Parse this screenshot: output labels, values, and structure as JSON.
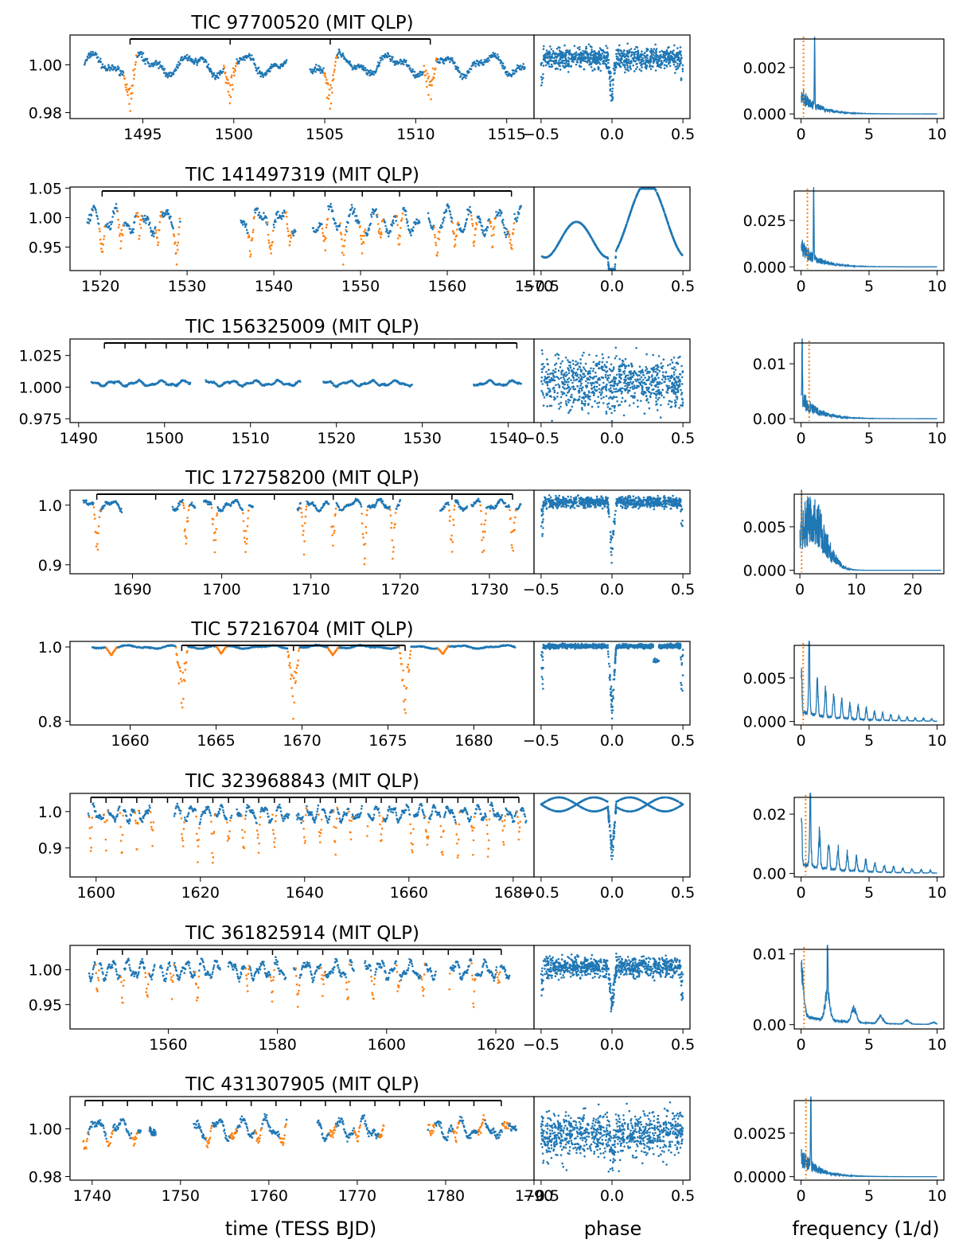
{
  "figure": {
    "xlabel_time": "time (TESS BJD)",
    "xlabel_phase": "phase",
    "xlabel_freq": "frequency (1/d)",
    "colors": {
      "data": "#1f77b4",
      "eclipse": "#ff7f0e",
      "marker": "#000000"
    }
  },
  "chart_data": [
    {
      "type": "scatter",
      "title": "TIC 97700520 (MIT QLP)",
      "time": {
        "xlim": [
          1491,
          1516.5
        ],
        "ylim": [
          0.9775,
          1.0125
        ],
        "xticks": [
          "1495",
          "1500",
          "1505",
          "1510",
          "1515"
        ],
        "yticks": [
          "0.98",
          "1.00"
        ],
        "eclipse_times": [
          1494.3,
          1499.8,
          1505.3,
          1510.8
        ],
        "eclipse_marker_range": [
          1494.3,
          1510.8
        ],
        "eclipse_marker_ticks": [
          1494.3,
          1499.8,
          1505.3,
          1510.8
        ],
        "segments": [
          [
            1491.8,
            1502.9
          ],
          [
            1504.2,
            1516.0
          ]
        ],
        "baseline": 1.0,
        "scatter": 0.004,
        "depth": 0.02
      },
      "phase": {
        "xlim": [
          -0.55,
          0.55
        ],
        "xticks": [
          "-0.5",
          "0.0",
          "0.5"
        ],
        "depth": 0.02,
        "scatter": 0.004,
        "curve": "flat"
      },
      "periodogram": {
        "xlim": [
          -0.5,
          10.5
        ],
        "ylim": [
          -0.0002,
          0.0034
        ],
        "xticks": [
          "0",
          "5",
          "10"
        ],
        "yticks": [
          "0.000",
          "0.002"
        ],
        "peak_freq": 1.0,
        "peak_power": 0.0032,
        "period_line": 0.18
      }
    },
    {
      "type": "scatter",
      "title": "TIC 141497319 (MIT QLP)",
      "time": {
        "xlim": [
          1516.5,
          1570
        ],
        "ylim": [
          0.91,
          1.052
        ],
        "xticks": [
          "1520",
          "1530",
          "1540",
          "1550",
          "1560",
          "1570"
        ],
        "yticks": [
          "0.95",
          "1.00",
          "1.05"
        ],
        "eclipse_times": [
          1520.2,
          1522.3,
          1524.5,
          1526.7,
          1528.8,
          1537.4,
          1539.6,
          1541.7,
          1545.9,
          1548.0,
          1550.2,
          1552.3,
          1554.5,
          1558.8,
          1560.9,
          1563.1,
          1565.2,
          1567.4
        ],
        "eclipse_marker_range": [
          1520.2,
          1567.4
        ],
        "eclipse_marker_ticks": [
          1520.2,
          1523.9,
          1528.8,
          1535.5,
          1539.6,
          1542.3,
          1545.9,
          1550.2,
          1554.5,
          1558.8,
          1563.1,
          1567.4
        ],
        "segments": [
          [
            1518.5,
            1529.2
          ],
          [
            1536.2,
            1542.5
          ],
          [
            1544.5,
            1556.8
          ],
          [
            1557.8,
            1568.5
          ]
        ],
        "baseline": 0.995,
        "scatter": 0.02,
        "depth": 0.06
      },
      "phase": {
        "xlim": [
          -0.55,
          0.55
        ],
        "xticks": [
          "-0.5",
          "0.0",
          "0.5"
        ],
        "depth": 0.06,
        "scatter": 0.006,
        "curve": "sinus"
      },
      "periodogram": {
        "xlim": [
          -0.5,
          10.5
        ],
        "ylim": [
          -0.002,
          0.043
        ],
        "xticks": [
          "0",
          "5",
          "10"
        ],
        "yticks": [
          "0.000",
          "0.025"
        ],
        "peak_freq": 0.93,
        "peak_power": 0.041,
        "period_line": 0.47
      }
    },
    {
      "type": "scatter",
      "title": "TIC 156325009 (MIT QLP)",
      "time": {
        "xlim": [
          1489,
          1543
        ],
        "ylim": [
          0.972,
          1.038
        ],
        "xticks": [
          "1490",
          "1500",
          "1510",
          "1520",
          "1530",
          "1540"
        ],
        "yticks": [
          "0.975",
          "1.000",
          "1.025"
        ],
        "eclipse_times": [],
        "eclipse_marker_range": [
          1493,
          1541
        ],
        "eclipse_marker_ticks": [
          1493,
          1495.4,
          1497.8,
          1500.2,
          1502.6,
          1505,
          1507.4,
          1509.8,
          1512.2,
          1514.6,
          1517,
          1519.4,
          1521.8,
          1524.2,
          1526.6,
          1529,
          1531.4,
          1533.8,
          1536.2,
          1538.6,
          1541
        ],
        "segments": [
          [
            1491.5,
            1503.0
          ],
          [
            1504.8,
            1515.8
          ],
          [
            1518.5,
            1528.8
          ],
          [
            1536.0,
            1541.5
          ]
        ],
        "baseline": 1.003,
        "scatter": 0.002,
        "depth": 0.004
      },
      "phase": {
        "xlim": [
          -0.55,
          0.55
        ],
        "xticks": [
          "-0.5",
          "0.0",
          "0.5"
        ],
        "depth": 0.01,
        "scatter": 0.012,
        "curve": "band"
      },
      "periodogram": {
        "xlim": [
          -0.5,
          10.5
        ],
        "ylim": [
          -0.0007,
          0.0145
        ],
        "xticks": [
          "0",
          "5",
          "10"
        ],
        "yticks": [
          "0.00",
          "0.01"
        ],
        "peak_freq": 0.08,
        "peak_power": 0.014,
        "period_line": 0.6
      }
    },
    {
      "type": "scatter",
      "title": "TIC 172758200 (MIT QLP)",
      "time": {
        "xlim": [
          1683,
          1735
        ],
        "ylim": [
          0.885,
          1.025
        ],
        "xticks": [
          "1690",
          "1700",
          "1710",
          "1720",
          "1730"
        ],
        "yticks": [
          "0.9",
          "1.0"
        ],
        "eclipse_times": [
          1686.0,
          1696.0,
          1699.2,
          1702.7,
          1709.2,
          1712.5,
          1716.0,
          1719.2,
          1725.8,
          1729.3,
          1732.6
        ],
        "eclipse_marker_range": [
          1686.0,
          1732.6
        ],
        "eclipse_marker_ticks": [
          1686.0,
          1692.6,
          1699.2,
          1705.9,
          1712.5,
          1719.2,
          1725.8,
          1732.6
        ],
        "segments": [
          [
            1684.5,
            1688.8
          ],
          [
            1694.5,
            1697.0
          ],
          [
            1698.0,
            1703.5
          ],
          [
            1708.5,
            1712.0
          ],
          [
            1712.3,
            1720.0
          ],
          [
            1724.5,
            1727.5
          ],
          [
            1728.0,
            1733.5
          ]
        ],
        "baseline": 1.0,
        "scatter": 0.008,
        "depth": 0.1
      },
      "phase": {
        "xlim": [
          -0.55,
          0.55
        ],
        "xticks": [
          "-0.5",
          "0.0",
          "0.5"
        ],
        "depth": 0.11,
        "scatter": 0.008,
        "curve": "flat"
      },
      "periodogram": {
        "xlim": [
          -1,
          25.5
        ],
        "ylim": [
          -0.0004,
          0.0092
        ],
        "xticks": [
          "0",
          "10",
          "20"
        ],
        "yticks": [
          "0.000",
          "0.005"
        ],
        "peak_freq": 0.3,
        "peak_power": 0.0088,
        "period_line": 0.3,
        "shape": "hump"
      }
    },
    {
      "type": "scatter",
      "title": "TIC 57216704 (MIT QLP)",
      "time": {
        "xlim": [
          1656.5,
          1683.5
        ],
        "ylim": [
          0.79,
          1.015
        ],
        "xticks": [
          "1660",
          "1665",
          "1670",
          "1675",
          "1680"
        ],
        "yticks": [
          "0.8",
          "1.0"
        ],
        "eclipse_times": [
          1663.0,
          1669.5,
          1676.0
        ],
        "eclipse_marker_range": [
          1663.0,
          1676.0
        ],
        "eclipse_marker_ticks": [
          1663.0,
          1669.5,
          1676.0
        ],
        "segments": [
          [
            1657.8,
            1682.4
          ]
        ],
        "baseline": 1.0,
        "scatter": 0.004,
        "depth": 0.2,
        "secondary": [
          1658.9,
          1665.3,
          1671.8,
          1678.2
        ]
      },
      "phase": {
        "xlim": [
          -0.55,
          0.55
        ],
        "xticks": [
          "-0.5",
          "0.0",
          "0.5"
        ],
        "depth": 0.2,
        "scatter": 0.005,
        "curve": "flat",
        "secondary": 0.31
      },
      "periodogram": {
        "xlim": [
          -0.5,
          10.5
        ],
        "ylim": [
          -0.0004,
          0.0092
        ],
        "xticks": [
          "0",
          "5",
          "10"
        ],
        "yticks": [
          "0.000",
          "0.005"
        ],
        "peak_freq": 0.6,
        "peak_power": 0.0088,
        "period_line": 0.16,
        "shape": "comb"
      }
    },
    {
      "type": "scatter",
      "title": "TIC 323968843 (MIT QLP)",
      "time": {
        "xlim": [
          1595,
          1684
        ],
        "ylim": [
          0.82,
          1.05
        ],
        "xticks": [
          "1600",
          "1620",
          "1640",
          "1660",
          "1680"
        ],
        "yticks": [
          "0.9",
          "1.0"
        ],
        "eclipse_times": [
          1599,
          1601.9,
          1604.9,
          1607.8,
          1610.7,
          1616.6,
          1619.5,
          1622.4,
          1625.4,
          1628.3,
          1631.2,
          1634.2,
          1640.0,
          1643.0,
          1645.9,
          1648.8,
          1651.8,
          1654.7,
          1660.6,
          1663.5,
          1666.4,
          1669.4,
          1672.3,
          1675.2,
          1678.2,
          1681.1
        ],
        "eclipse_marker_range": [
          1599,
          1681.1
        ],
        "eclipse_marker_ticks": [
          1599,
          1601.9,
          1604.9,
          1607.8,
          1610.7,
          1613.7,
          1616.6,
          1619.5,
          1622.4,
          1625.4,
          1628.3,
          1631.2,
          1634.2,
          1637.1,
          1640.0,
          1643.0,
          1645.9,
          1648.8,
          1651.8,
          1654.7,
          1657.6,
          1660.6,
          1663.5,
          1666.4,
          1669.4,
          1672.3,
          1675.2,
          1678.2,
          1681.1
        ],
        "segments": [
          [
            1598.5,
            1611.0
          ],
          [
            1615.0,
            1626.0
          ],
          [
            1627.0,
            1637.0
          ],
          [
            1638.5,
            1651.0
          ],
          [
            1652.0,
            1682.5
          ]
        ],
        "baseline": 0.995,
        "scatter": 0.02,
        "depth": 0.15
      },
      "phase": {
        "xlim": [
          -0.55,
          0.55
        ],
        "xticks": [
          "-0.5",
          "0.0",
          "0.5"
        ],
        "depth": 0.15,
        "scatter": 0.01,
        "curve": "braid"
      },
      "periodogram": {
        "xlim": [
          -0.5,
          10.5
        ],
        "ylim": [
          -0.0012,
          0.027
        ],
        "xticks": [
          "0",
          "5",
          "10"
        ],
        "yticks": [
          "0.00",
          "0.02"
        ],
        "peak_freq": 0.68,
        "peak_power": 0.026,
        "period_line": 0.34,
        "shape": "comb"
      }
    },
    {
      "type": "scatter",
      "title": "TIC 361825914 (MIT QLP)",
      "time": {
        "xlim": [
          1542,
          1627
        ],
        "ylim": [
          0.915,
          1.035
        ],
        "xticks": [
          "1560",
          "1580",
          "1600",
          "1620"
        ],
        "yticks": [
          "0.95",
          "1.00"
        ],
        "eclipse_times": [
          1547.0,
          1551.6,
          1556.1,
          1560.7,
          1565.3,
          1569.9,
          1574.5,
          1579.1,
          1583.7,
          1588.3,
          1592.9,
          1597.5,
          1602.1,
          1606.7,
          1611.3,
          1615.9,
          1620.5
        ],
        "eclipse_marker_range": [
          1547.0,
          1621.0
        ],
        "eclipse_marker_ticks": [
          1547.0,
          1551.6,
          1556.1,
          1560.7,
          1565.3,
          1569.9,
          1574.5,
          1579.1,
          1583.7,
          1588.3,
          1592.9,
          1597.5,
          1602.1,
          1606.7,
          1611.3,
          1615.9,
          1621.0
        ],
        "segments": [
          [
            1545.5,
            1557.5
          ],
          [
            1558.5,
            1569.5
          ],
          [
            1571.0,
            1581.5
          ],
          [
            1583.0,
            1594.0
          ],
          [
            1596.0,
            1609.0
          ],
          [
            1611.5,
            1622.5
          ]
        ],
        "baseline": 1.0,
        "scatter": 0.012,
        "depth": 0.06
      },
      "phase": {
        "xlim": [
          -0.55,
          0.55
        ],
        "xticks": [
          "-0.5",
          "0.0",
          "0.5"
        ],
        "depth": 0.07,
        "scatter": 0.012,
        "curve": "flat"
      },
      "periodogram": {
        "xlim": [
          -0.5,
          10.5
        ],
        "ylim": [
          -0.0006,
          0.0112
        ],
        "xticks": [
          "0",
          "5",
          "10"
        ],
        "yticks": [
          "0.00",
          "0.01"
        ],
        "peak_freq": 1.95,
        "peak_power": 0.0105,
        "period_line": 0.22,
        "shape": "comb"
      }
    },
    {
      "type": "scatter",
      "title": "TIC 431307905 (MIT QLP)",
      "time": {
        "xlim": [
          1737.5,
          1790
        ],
        "ylim": [
          0.9785,
          1.0135
        ],
        "xticks": [
          "1740",
          "1750",
          "1760",
          "1770",
          "1780",
          "1790"
        ],
        "yticks": [
          "0.98",
          "1.00"
        ],
        "eclipse_times": [
          1739.2,
          1742.0,
          1744.8,
          1750.4,
          1753.2,
          1756.0,
          1758.8,
          1761.6,
          1767.2,
          1770.0,
          1772.8,
          1778.4,
          1781.2,
          1784.0,
          1786.8
        ],
        "eclipse_marker_range": [
          1739.2,
          1786.3
        ],
        "eclipse_marker_ticks": [
          1739.2,
          1741.2,
          1744.0,
          1746.8,
          1749.6,
          1752.4,
          1755.2,
          1758.0,
          1760.8,
          1763.6,
          1766.4,
          1769.2,
          1772.0,
          1774.8,
          1777.6,
          1780.4,
          1783.2,
          1786.3
        ],
        "segments": [
          [
            1739.0,
            1745.5
          ],
          [
            1746.5,
            1747.2
          ],
          [
            1751.5,
            1762.0
          ],
          [
            1765.5,
            1773.0
          ],
          [
            1778.0,
            1788.0
          ]
        ],
        "baseline": 1.0,
        "scatter": 0.004,
        "depth": 0.006
      },
      "phase": {
        "xlim": [
          -0.55,
          0.55
        ],
        "xticks": [
          "-0.5",
          "0.0",
          "0.5"
        ],
        "depth": 0.008,
        "scatter": 0.005,
        "curve": "band"
      },
      "periodogram": {
        "xlim": [
          -0.5,
          10.5
        ],
        "ylim": [
          -0.0002,
          0.0046
        ],
        "xticks": [
          "0",
          "5",
          "10"
        ],
        "yticks": [
          "0.0000",
          "0.0025"
        ],
        "peak_freq": 0.72,
        "peak_power": 0.0044,
        "period_line": 0.36
      }
    }
  ]
}
